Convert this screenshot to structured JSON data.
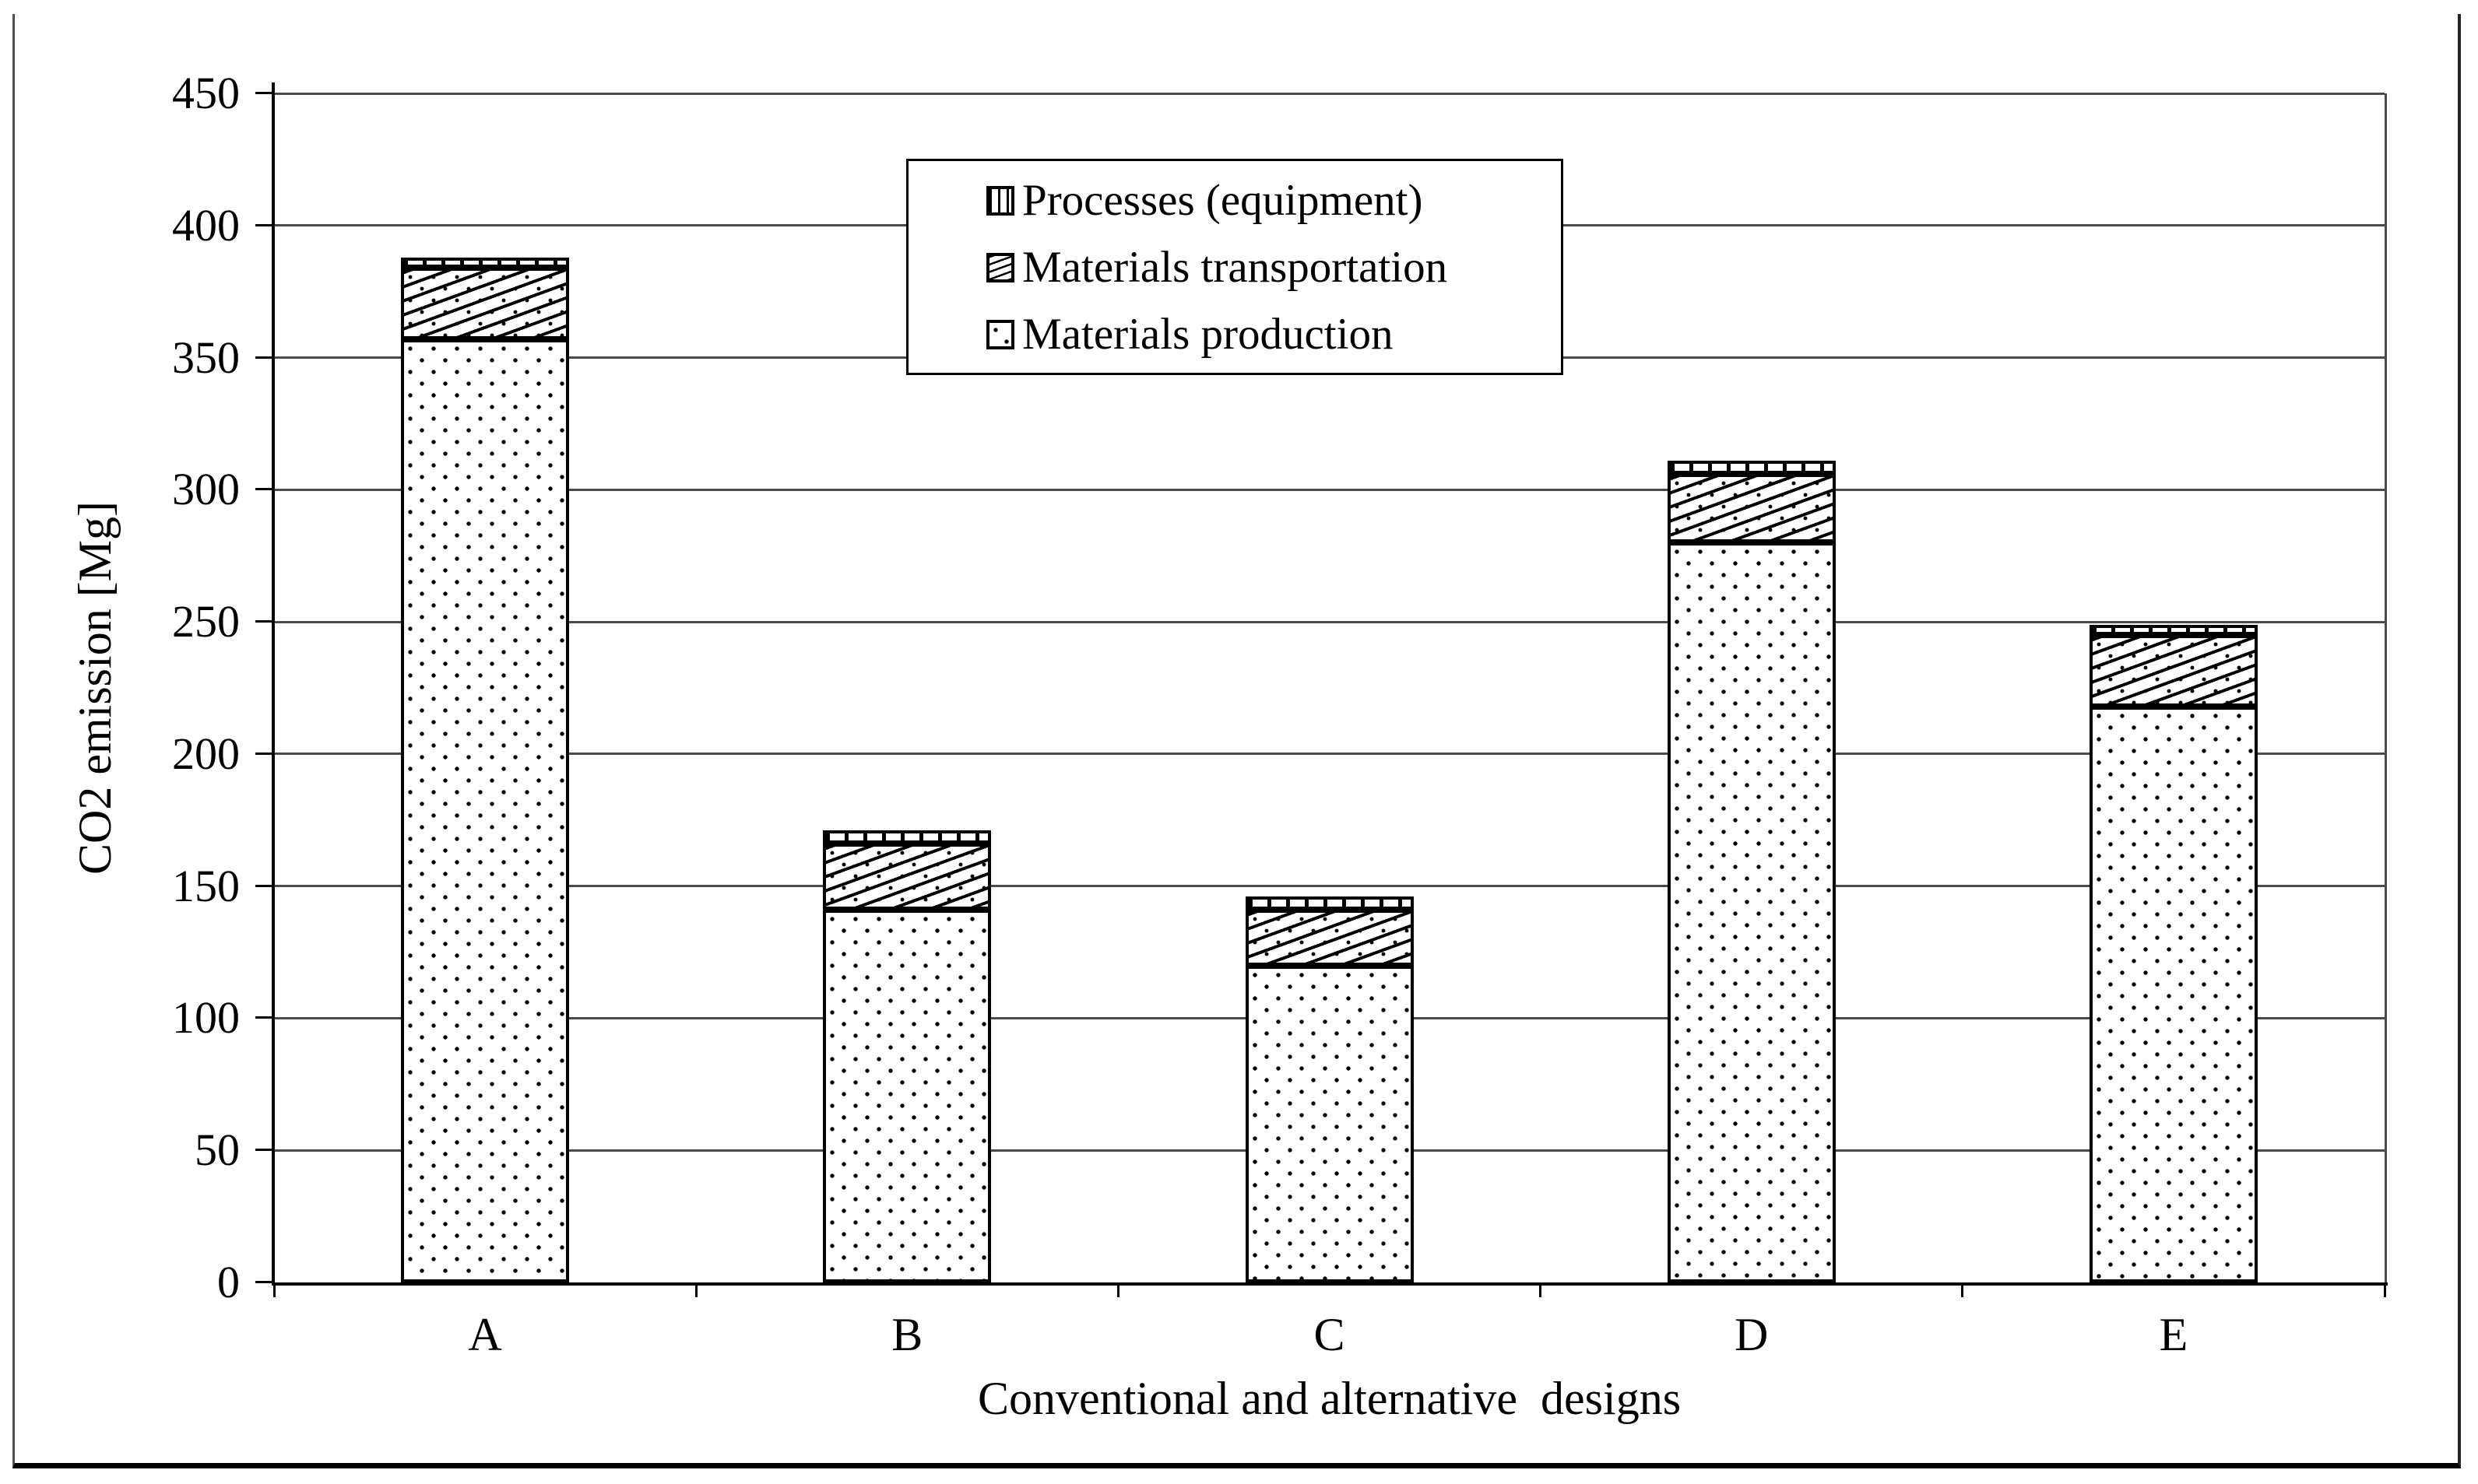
{
  "chart_data": {
    "type": "bar",
    "stacked": true,
    "categories": [
      "A",
      "B",
      "C",
      "D",
      "E"
    ],
    "series": [
      {
        "name": "Materials production",
        "pattern": "dots",
        "values": [
          357,
          141,
          120,
          280,
          218
        ]
      },
      {
        "name": "Materials transportation",
        "pattern": "diagonal-hatch",
        "values": [
          27,
          25,
          21,
          26,
          27
        ]
      },
      {
        "name": "Processes (equipment)",
        "pattern": "vertical-stripes",
        "values": [
          4,
          5,
          5,
          5,
          4
        ]
      }
    ],
    "totals": [
      388,
      171,
      146,
      311,
      249
    ],
    "xlabel": "Conventional and alternative  designs",
    "ylabel": "CO2 emission [Mg]",
    "ylim": [
      0,
      450
    ],
    "yticks": [
      0,
      50,
      100,
      150,
      200,
      250,
      300,
      350,
      400,
      450
    ],
    "grid": true,
    "legend_position": "top-center",
    "legend_items": [
      "Processes (equipment)",
      "Materials transportation",
      "Materials production"
    ]
  },
  "colors": {
    "background": "#ffffff",
    "bar_fill": "#ffffff",
    "bar_border": "#000000",
    "gridline": "#4a4a4a",
    "axis": "#000000",
    "text": "#000000",
    "figure_border": "#000000"
  }
}
